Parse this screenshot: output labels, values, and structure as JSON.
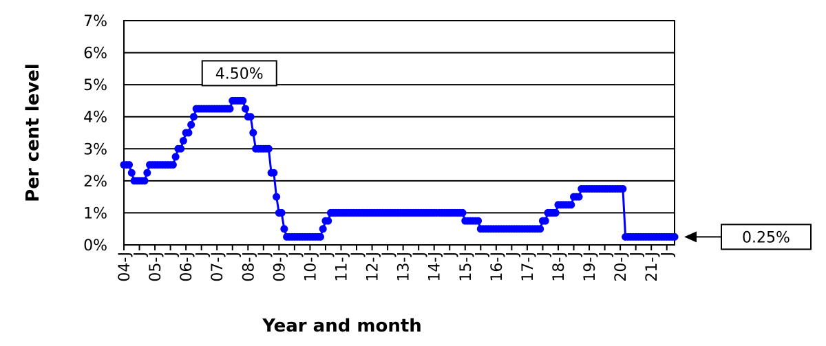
{
  "chart_data": {
    "type": "line",
    "title": "",
    "xlabel": "Year and month",
    "ylabel": "Per cent level",
    "ylim": [
      0,
      0.07
    ],
    "yticks": [
      {
        "value": 0,
        "label": "0%"
      },
      {
        "value": 0.01,
        "label": "1%"
      },
      {
        "value": 0.02,
        "label": "2%"
      },
      {
        "value": 0.03,
        "label": "3%"
      },
      {
        "value": 0.04,
        "label": "4%"
      },
      {
        "value": 0.05,
        "label": "5%"
      },
      {
        "value": 0.06,
        "label": "6%"
      },
      {
        "value": 0.07,
        "label": "7%"
      }
    ],
    "x_start": "2004-01",
    "x_end": "2021-10",
    "xticks": [
      {
        "value": "2004-01",
        "label": "04-J"
      },
      {
        "value": "2004-07",
        "label": "J"
      },
      {
        "value": "2005-01",
        "label": "05-J"
      },
      {
        "value": "2005-07",
        "label": "J"
      },
      {
        "value": "2006-01",
        "label": "06-J"
      },
      {
        "value": "2006-07",
        "label": "J"
      },
      {
        "value": "2007-01",
        "label": "07-J"
      },
      {
        "value": "2007-07",
        "label": "J"
      },
      {
        "value": "2008-01",
        "label": "08-J"
      },
      {
        "value": "2008-07",
        "label": "J"
      },
      {
        "value": "2009-01",
        "label": "09-J"
      },
      {
        "value": "2009-07",
        "label": "J"
      },
      {
        "value": "2010-01",
        "label": "10-J"
      },
      {
        "value": "2010-07",
        "label": "J"
      },
      {
        "value": "2011-01",
        "label": "11-J"
      },
      {
        "value": "2011-07",
        "label": "J"
      },
      {
        "value": "2012-01",
        "label": "12-J"
      },
      {
        "value": "2012-07",
        "label": "J"
      },
      {
        "value": "2013-01",
        "label": "13-J"
      },
      {
        "value": "2013-07",
        "label": "J"
      },
      {
        "value": "2014-01",
        "label": "14-J"
      },
      {
        "value": "2014-07",
        "label": "J"
      },
      {
        "value": "2015-01",
        "label": "15-J"
      },
      {
        "value": "2015-07",
        "label": "J"
      },
      {
        "value": "2016-01",
        "label": "16-J"
      },
      {
        "value": "2016-07",
        "label": "J"
      },
      {
        "value": "2017-01",
        "label": "17-J"
      },
      {
        "value": "2017-07",
        "label": "J"
      },
      {
        "value": "2018-01",
        "label": "18-J"
      },
      {
        "value": "2018-07",
        "label": "J"
      },
      {
        "value": "2019-01",
        "label": "19-J"
      },
      {
        "value": "2019-07",
        "label": "J"
      },
      {
        "value": "2020-01",
        "label": "20-J"
      },
      {
        "value": "2020-07",
        "label": "J"
      },
      {
        "value": "2021-01",
        "label": "21-J"
      },
      {
        "value": "2021-07",
        "label": "J"
      }
    ],
    "grid": {
      "horizontal": true,
      "vertical": false
    },
    "legend": "none",
    "series": [
      {
        "color": "#0000FF",
        "steps": [
          {
            "from": "2004-01",
            "value": 0.025
          },
          {
            "from": "2004-04",
            "value": 0.0225
          },
          {
            "from": "2004-05",
            "value": 0.02
          },
          {
            "from": "2004-10",
            "value": 0.0225
          },
          {
            "from": "2004-11",
            "value": 0.025
          },
          {
            "from": "2005-09",
            "value": 0.0275
          },
          {
            "from": "2005-10",
            "value": 0.03
          },
          {
            "from": "2005-12",
            "value": 0.0325
          },
          {
            "from": "2006-01",
            "value": 0.035
          },
          {
            "from": "2006-03",
            "value": 0.0375
          },
          {
            "from": "2006-04",
            "value": 0.04
          },
          {
            "from": "2006-05",
            "value": 0.0425
          },
          {
            "from": "2007-07",
            "value": 0.045
          },
          {
            "from": "2007-12",
            "value": 0.0425
          },
          {
            "from": "2008-01",
            "value": 0.04
          },
          {
            "from": "2008-03",
            "value": 0.035
          },
          {
            "from": "2008-04",
            "value": 0.03
          },
          {
            "from": "2008-10",
            "value": 0.0225
          },
          {
            "from": "2008-12",
            "value": 0.015
          },
          {
            "from": "2009-01",
            "value": 0.01
          },
          {
            "from": "2009-03",
            "value": 0.005
          },
          {
            "from": "2009-04",
            "value": 0.0025
          },
          {
            "from": "2010-06",
            "value": 0.005
          },
          {
            "from": "2010-07",
            "value": 0.0075
          },
          {
            "from": "2010-09",
            "value": 0.01
          },
          {
            "from": "2015-01",
            "value": 0.0075
          },
          {
            "from": "2015-07",
            "value": 0.005
          },
          {
            "from": "2017-07",
            "value": 0.0075
          },
          {
            "from": "2017-09",
            "value": 0.01
          },
          {
            "from": "2018-01",
            "value": 0.0125
          },
          {
            "from": "2018-07",
            "value": 0.015
          },
          {
            "from": "2018-10",
            "value": 0.0175
          },
          {
            "from": "2020-03",
            "value": 0.0025
          }
        ]
      }
    ],
    "annotations": [
      {
        "text": "4.50%",
        "x": "2007-07",
        "y": 0.045,
        "position": "above"
      },
      {
        "text": "0.25%",
        "x": "2021-10",
        "y": 0.0025,
        "position": "right",
        "arrow": true
      }
    ]
  }
}
